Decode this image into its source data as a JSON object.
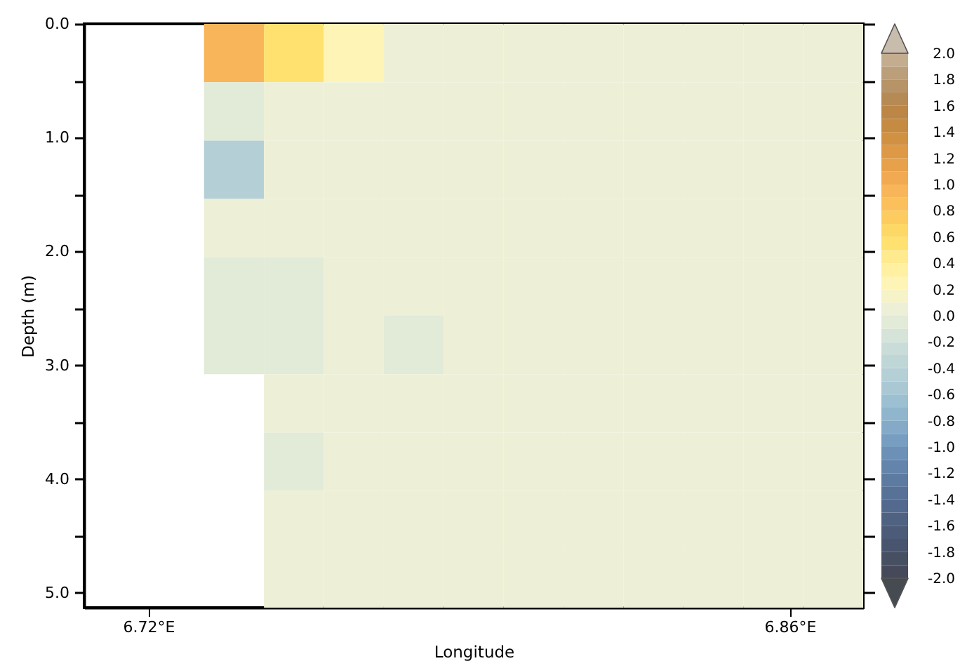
{
  "chart_data": {
    "type": "heatmap",
    "xlabel": "Longitude",
    "ylabel": "Depth (m)",
    "cells": [
      [
        null,
        null,
        0.95,
        0.55,
        0.25,
        0.05,
        0.05,
        0.05,
        0.05,
        0.05,
        0.05,
        0.05,
        0.05
      ],
      [
        null,
        null,
        -0.05,
        0.05,
        0.05,
        0.05,
        0.05,
        0.05,
        0.05,
        0.05,
        0.05,
        0.05,
        0.05
      ],
      [
        null,
        null,
        -0.45,
        0.05,
        0.05,
        0.05,
        0.05,
        0.05,
        0.05,
        0.05,
        0.05,
        0.05,
        0.05
      ],
      [
        null,
        null,
        0.05,
        0.05,
        0.05,
        0.05,
        0.05,
        0.05,
        0.05,
        0.05,
        0.05,
        0.05,
        0.05
      ],
      [
        null,
        null,
        -0.05,
        -0.05,
        0.05,
        0.05,
        0.05,
        0.05,
        0.05,
        0.05,
        0.05,
        0.05,
        0.05
      ],
      [
        null,
        null,
        -0.05,
        -0.05,
        0.05,
        -0.05,
        0.05,
        0.05,
        0.05,
        0.05,
        0.05,
        0.05,
        0.05
      ],
      [
        null,
        null,
        null,
        0.05,
        0.05,
        0.05,
        0.05,
        0.05,
        0.05,
        0.05,
        0.05,
        0.05,
        0.05
      ],
      [
        null,
        null,
        null,
        -0.05,
        0.05,
        0.05,
        0.05,
        0.05,
        0.05,
        0.05,
        0.05,
        0.05,
        0.05
      ],
      [
        null,
        null,
        null,
        0.05,
        0.05,
        0.05,
        0.05,
        0.05,
        0.05,
        0.05,
        0.05,
        0.05,
        0.05
      ],
      [
        null,
        null,
        null,
        0.05,
        0.05,
        0.05,
        0.05,
        0.05,
        0.05,
        0.05,
        0.05,
        0.05,
        0.05
      ]
    ],
    "xlim": [
      6.706,
      6.876
    ],
    "xticks": [
      {
        "value": 6.72,
        "label": "6.72°E"
      },
      {
        "value": 6.86,
        "label": "6.86°E"
      }
    ],
    "ylim": [
      5.13,
      0
    ],
    "yticks": [
      {
        "value": 0,
        "label": "0.0"
      },
      {
        "value": 0.5,
        "label": null
      },
      {
        "value": 1,
        "label": "1.0"
      },
      {
        "value": 1.5,
        "label": null
      },
      {
        "value": 2,
        "label": "2.0"
      },
      {
        "value": 2.5,
        "label": null
      },
      {
        "value": 3,
        "label": "3.0"
      },
      {
        "value": 3.5,
        "label": null
      },
      {
        "value": 4,
        "label": "4.0"
      },
      {
        "value": 4.5,
        "label": null
      },
      {
        "value": 5,
        "label": "5.0"
      }
    ],
    "clim": [
      -2,
      2
    ],
    "cticks": [
      {
        "value": -2,
        "label": "-2.0"
      },
      {
        "value": -1.8,
        "label": "-1.8"
      },
      {
        "value": -1.6,
        "label": "-1.6"
      },
      {
        "value": -1.4,
        "label": "-1.4"
      },
      {
        "value": -1.2,
        "label": "-1.2"
      },
      {
        "value": -1,
        "label": "-1.0"
      },
      {
        "value": -0.8,
        "label": "-0.8"
      },
      {
        "value": -0.6,
        "label": "-0.6"
      },
      {
        "value": -0.4,
        "label": "-0.4"
      },
      {
        "value": -0.2,
        "label": "-0.2"
      },
      {
        "value": 0,
        "label": "0.0"
      },
      {
        "value": 0.2,
        "label": "0.2"
      },
      {
        "value": 0.4,
        "label": "0.4"
      },
      {
        "value": 0.6,
        "label": "0.6"
      },
      {
        "value": 0.8,
        "label": "0.8"
      },
      {
        "value": 1,
        "label": "1.0"
      },
      {
        "value": 1.2,
        "label": "1.2"
      },
      {
        "value": 1.4,
        "label": "1.4"
      },
      {
        "value": 1.6,
        "label": "1.6"
      },
      {
        "value": 1.8,
        "label": "1.8"
      },
      {
        "value": 2,
        "label": "2.0"
      }
    ]
  }
}
